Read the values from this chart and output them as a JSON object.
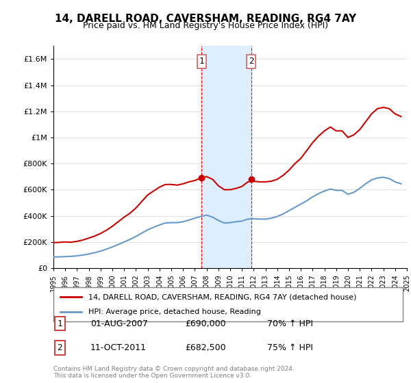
{
  "title": "14, DARELL ROAD, CAVERSHAM, READING, RG4 7AY",
  "subtitle": "Price paid vs. HM Land Registry's House Price Index (HPI)",
  "legend_label_red": "14, DARELL ROAD, CAVERSHAM, READING, RG4 7AY (detached house)",
  "legend_label_blue": "HPI: Average price, detached house, Reading",
  "footnote": "Contains HM Land Registry data © Crown copyright and database right 2024.\nThis data is licensed under the Open Government Licence v3.0.",
  "transaction1_label": "1",
  "transaction1_date": "01-AUG-2007",
  "transaction1_price": "£690,000",
  "transaction1_hpi": "70% ↑ HPI",
  "transaction1_x": 2007.58,
  "transaction1_y": 690000,
  "transaction2_label": "2",
  "transaction2_date": "11-OCT-2011",
  "transaction2_price": "£682,500",
  "transaction2_hpi": "75% ↑ HPI",
  "transaction2_x": 2011.78,
  "transaction2_y": 682500,
  "red_color": "#cc0000",
  "blue_color": "#6699cc",
  "shade_color": "#ddeeff",
  "ylim": [
    0,
    1700000
  ],
  "yticks": [
    0,
    200000,
    400000,
    600000,
    800000,
    1000000,
    1200000,
    1400000,
    1600000
  ],
  "ytick_labels": [
    "£0",
    "£200K",
    "£400K",
    "£600K",
    "£800K",
    "£1M",
    "£1.2M",
    "£1.4M",
    "£1.6M"
  ],
  "red_x": [
    1995,
    1995.5,
    1996,
    1996.5,
    1997,
    1997.5,
    1998,
    1998.5,
    1999,
    1999.5,
    2000,
    2000.5,
    2001,
    2001.5,
    2002,
    2002.5,
    2003,
    2003.5,
    2004,
    2004.5,
    2005,
    2005.5,
    2006,
    2006.5,
    2007,
    2007.5,
    2008,
    2008.5,
    2009,
    2009.5,
    2010,
    2010.5,
    2011,
    2011.5,
    2012,
    2012.5,
    2013,
    2013.5,
    2014,
    2014.5,
    2015,
    2015.5,
    2016,
    2016.5,
    2017,
    2017.5,
    2018,
    2018.5,
    2019,
    2019.5,
    2020,
    2020.5,
    2021,
    2021.5,
    2022,
    2022.5,
    2023,
    2023.5,
    2024,
    2024.5
  ],
  "red_y": [
    195000,
    197000,
    200000,
    198000,
    205000,
    215000,
    230000,
    245000,
    265000,
    290000,
    320000,
    355000,
    390000,
    420000,
    460000,
    510000,
    560000,
    590000,
    620000,
    640000,
    640000,
    635000,
    645000,
    660000,
    670000,
    690000,
    700000,
    680000,
    630000,
    600000,
    600000,
    610000,
    625000,
    660000,
    665000,
    660000,
    660000,
    665000,
    680000,
    710000,
    750000,
    800000,
    840000,
    900000,
    960000,
    1010000,
    1050000,
    1080000,
    1050000,
    1050000,
    1000000,
    1020000,
    1060000,
    1120000,
    1180000,
    1220000,
    1230000,
    1220000,
    1180000,
    1160000
  ],
  "blue_x": [
    1995,
    1995.5,
    1996,
    1996.5,
    1997,
    1997.5,
    1998,
    1998.5,
    1999,
    1999.5,
    2000,
    2000.5,
    2001,
    2001.5,
    2002,
    2002.5,
    2003,
    2003.5,
    2004,
    2004.5,
    2005,
    2005.5,
    2006,
    2006.5,
    2007,
    2007.5,
    2008,
    2008.5,
    2009,
    2009.5,
    2010,
    2010.5,
    2011,
    2011.5,
    2012,
    2012.5,
    2013,
    2013.5,
    2014,
    2014.5,
    2015,
    2015.5,
    2016,
    2016.5,
    2017,
    2017.5,
    2018,
    2018.5,
    2019,
    2019.5,
    2020,
    2020.5,
    2021,
    2021.5,
    2022,
    2022.5,
    2023,
    2023.5,
    2024,
    2024.5
  ],
  "blue_y": [
    85000,
    86000,
    88000,
    90000,
    94000,
    100000,
    108000,
    118000,
    130000,
    145000,
    162000,
    180000,
    200000,
    220000,
    242000,
    268000,
    293000,
    312000,
    330000,
    345000,
    348000,
    348000,
    355000,
    368000,
    382000,
    395000,
    405000,
    390000,
    365000,
    345000,
    348000,
    355000,
    360000,
    375000,
    378000,
    375000,
    375000,
    382000,
    395000,
    415000,
    440000,
    465000,
    490000,
    515000,
    545000,
    570000,
    590000,
    605000,
    595000,
    595000,
    565000,
    580000,
    610000,
    645000,
    675000,
    690000,
    695000,
    685000,
    660000,
    645000
  ],
  "xmin": 1995,
  "xmax": 2025
}
